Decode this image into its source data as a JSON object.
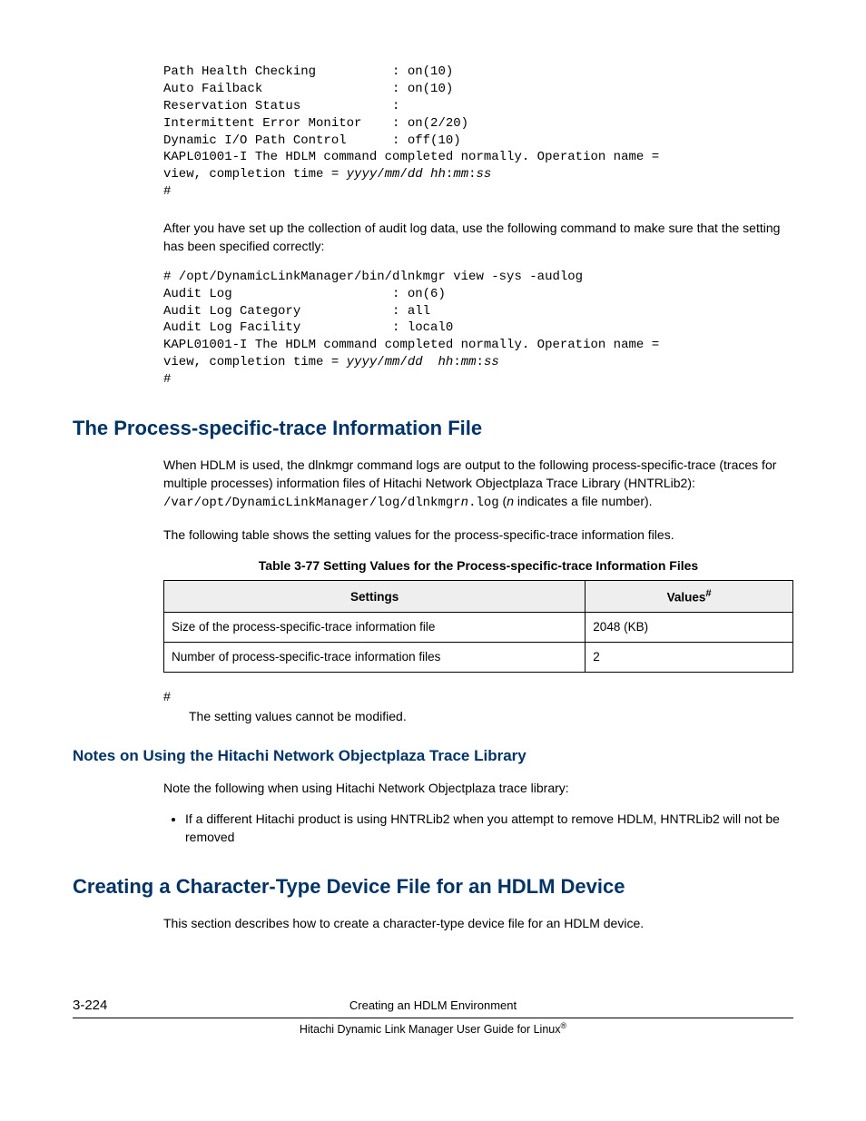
{
  "codeblock1": {
    "lines": [
      {
        "label": "Path Health Checking",
        "sep": ":",
        "val": "on(10)"
      },
      {
        "label": "Auto Failback",
        "sep": ":",
        "val": "on(10)"
      },
      {
        "label": "Reservation Status",
        "sep": ":",
        "val": ""
      },
      {
        "label": "Intermittent Error Monitor",
        "sep": ":",
        "val": "on(2/20)"
      },
      {
        "label": "Dynamic I/O Path Control",
        "sep": ":",
        "val": "off(10)"
      }
    ],
    "wrap_a": "KAPL01001-I The HDLM command completed normally. Operation name =",
    "wrap_b_prefix": "view, completion time = ",
    "ts_parts": [
      "yyyy",
      "/",
      "mm",
      "/",
      "dd",
      " ",
      "hh",
      ":",
      "mm",
      ":",
      "ss"
    ],
    "hash": "#"
  },
  "para_after1": "After you have set up the collection of audit log data, use the following command to make sure that the setting has been specified correctly:",
  "codeblock2": {
    "cmd": "# /opt/DynamicLinkManager/bin/dlnkmgr view -sys -audlog",
    "lines": [
      {
        "label": "Audit Log",
        "sep": ":",
        "val": "on(6)"
      },
      {
        "label": "Audit Log Category",
        "sep": ":",
        "val": "all"
      },
      {
        "label": "Audit Log Facility",
        "sep": ":",
        "val": "local0"
      }
    ],
    "wrap_a": "KAPL01001-I The HDLM command completed normally. Operation name =",
    "wrap_b_prefix": "view, completion time = ",
    "ts_parts": [
      "yyyy",
      "/",
      "mm",
      "/",
      "dd",
      "  ",
      "hh",
      ":",
      "mm",
      ":",
      "ss"
    ],
    "hash": "#"
  },
  "h1_a": "The Process-specific-trace Information File",
  "para_a1_pre": "When HDLM is used, the dlnkmgr command logs are output to the following process-specific-trace (traces for multiple processes) information files of Hitachi Network Objectplaza Trace Library (HNTRLib2): ",
  "para_a1_code1": "/var/opt/DynamicLinkManager/log/dlnkmgr",
  "para_a1_italic": "n",
  "para_a1_code2": ".log",
  "para_a1_post_pre": " (",
  "para_a1_post_it": "n",
  "para_a1_post_rest": " indicates a file number).",
  "para_a2": "The following table shows the setting values for the process-specific-trace information files.",
  "tablecaption": "Table 3-77 Setting Values for the Process-specific-trace Information Files",
  "table": {
    "headers": [
      "Settings",
      "Values#"
    ],
    "rows": [
      [
        "Size of the process-specific-trace information file",
        "2048 (KB)"
      ],
      [
        "Number of process-specific-trace information files",
        "2"
      ]
    ],
    "col_widths": [
      "67%",
      "33%"
    ]
  },
  "footnote_key": "#",
  "footnote_body": "The setting values cannot be modified.",
  "h2_a": "Notes on Using the Hitachi Network Objectplaza Trace Library",
  "para_b1": "Note the following when using Hitachi Network Objectplaza trace library:",
  "bullet1": "If a different Hitachi product is using HNTRLib2 when you attempt to remove HDLM, HNTRLib2 will not be removed",
  "h1_b": "Creating a Character-Type Device File for an HDLM Device",
  "para_c1": "This section describes how to create a character-type device file for an HDLM device.",
  "footer": {
    "page": "3-224",
    "title": "Creating an HDLM Environment",
    "guide": "Hitachi Dynamic Link Manager User Guide for Linux",
    "reg": "®"
  }
}
